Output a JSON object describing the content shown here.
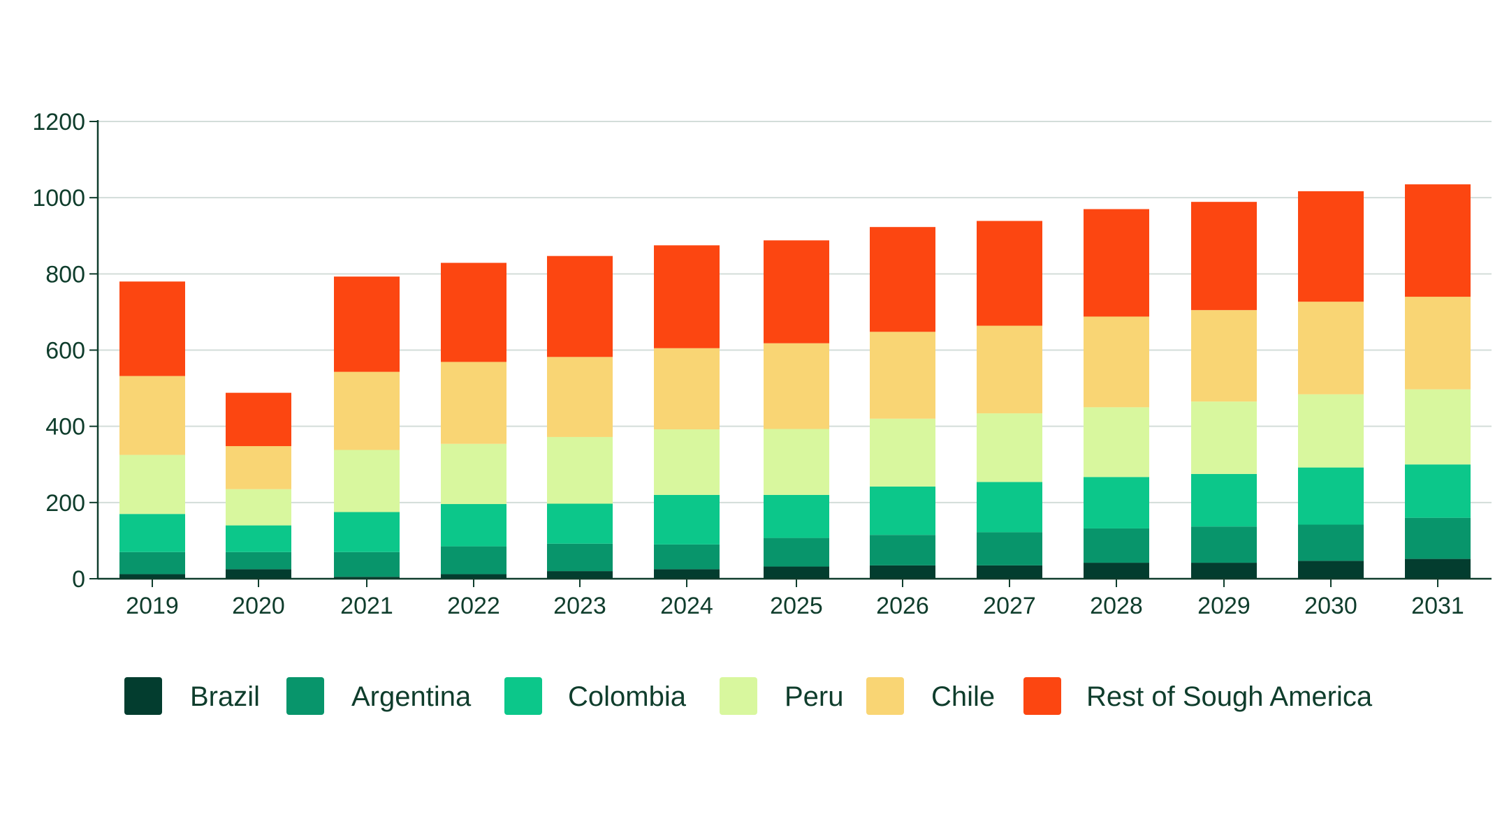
{
  "chart_data": {
    "type": "bar",
    "stacked": true,
    "title": "",
    "xlabel": "",
    "ylabel": "",
    "ylim": [
      0,
      1200
    ],
    "yticks": [
      0,
      200,
      400,
      600,
      800,
      1000,
      1200
    ],
    "grid": true,
    "legend_position": "bottom",
    "categories": [
      "2019",
      "2020",
      "2021",
      "2022",
      "2023",
      "2024",
      "2025",
      "2026",
      "2027",
      "2028",
      "2029",
      "2030",
      "2031"
    ],
    "series": [
      {
        "name": "Brazil",
        "color": "#033d2f",
        "values": [
          12,
          25,
          5,
          12,
          20,
          25,
          32,
          35,
          35,
          42,
          42,
          47,
          52
        ]
      },
      {
        "name": "Argentina",
        "color": "#08956b",
        "values": [
          58,
          45,
          65,
          73,
          72,
          65,
          75,
          80,
          87,
          90,
          95,
          95,
          108
        ]
      },
      {
        "name": "Colombia",
        "color": "#0cc78a",
        "values": [
          100,
          70,
          105,
          111,
          105,
          130,
          113,
          127,
          132,
          135,
          138,
          150,
          140
        ]
      },
      {
        "name": "Peru",
        "color": "#d8f79e",
        "values": [
          155,
          95,
          163,
          158,
          175,
          172,
          173,
          178,
          180,
          183,
          190,
          192,
          197
        ]
      },
      {
        "name": "Chile",
        "color": "#f9d574",
        "values": [
          207,
          113,
          205,
          215,
          210,
          213,
          225,
          228,
          230,
          238,
          240,
          243,
          243
        ]
      },
      {
        "name": "Rest of Sough America",
        "color": "#fc4611",
        "values": [
          248,
          140,
          250,
          260,
          265,
          270,
          270,
          275,
          275,
          282,
          284,
          290,
          295
        ]
      }
    ]
  }
}
